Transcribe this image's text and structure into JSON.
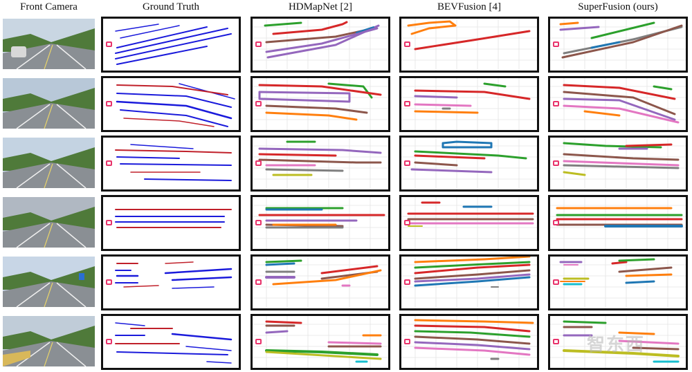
{
  "figure": {
    "headers": [
      "Front Camera",
      "Ground Truth",
      "HDMapNet [2]",
      "BEVFusion [4]",
      "SuperFusion (ours)"
    ],
    "rows": 6
  },
  "colors": {
    "gt_blue": "#1a1adb",
    "gt_red": "#c0202a",
    "green": "#2ca02c",
    "red": "#d62728",
    "brown": "#8c564b",
    "purple": "#9467bd",
    "blue": "#1f77b4",
    "orange": "#ff7f0e",
    "pink": "#e377c2",
    "gray": "#7f7f7f",
    "olive": "#bcbd22",
    "cyan": "#17becf",
    "ego": "#e8336b"
  },
  "watermark": "智东西"
}
